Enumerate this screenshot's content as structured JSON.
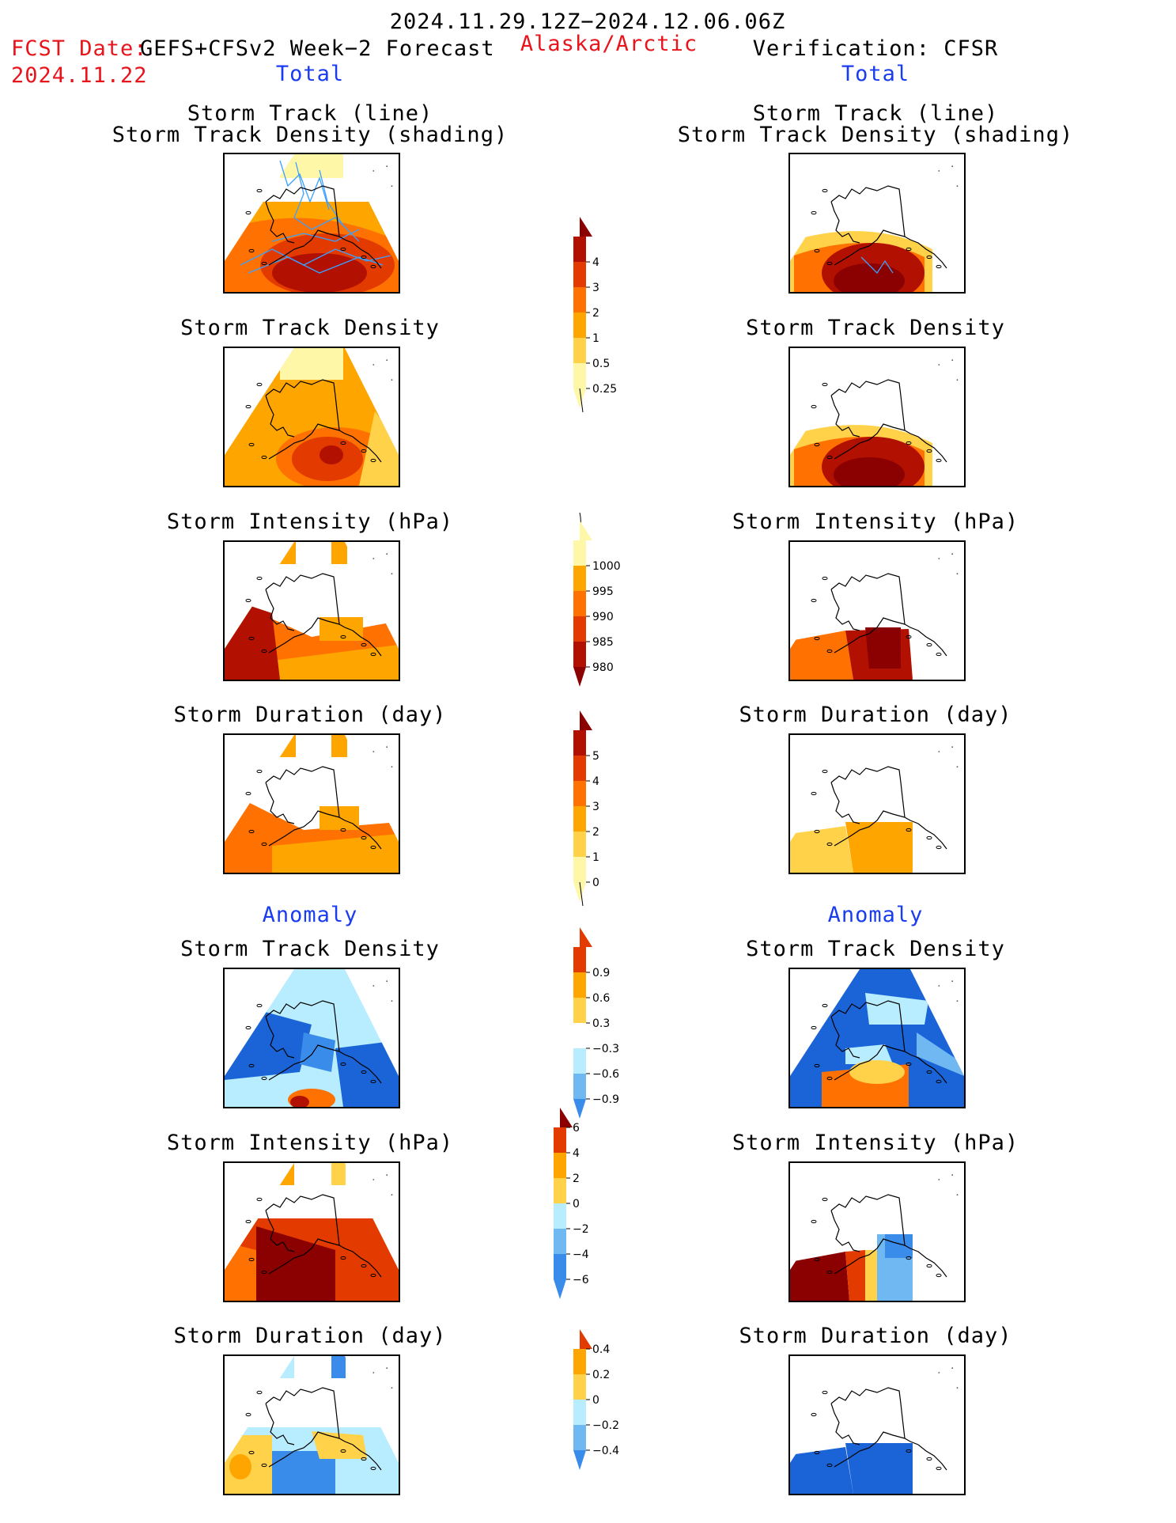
{
  "header": {
    "period": "2024.11.29.12Z−2024.12.06.06Z",
    "fcst_label": "FCST Date:",
    "fcst_model": "GEFS+CFSv2 Week−2 Forecast",
    "fcst_date": "2024.11.22",
    "region": "Alaska/Arctic",
    "verification": "Verification: CFSR"
  },
  "columns": {
    "left_total": "Total",
    "right_total": "Total",
    "left_anomaly": "Anomaly",
    "right_anomaly": "Anomaly"
  },
  "panel_titles": {
    "track_line": "Storm Track (line)",
    "track_shading": "Storm Track Density (shading)",
    "density": "Storm Track Density",
    "intensity": "Storm Intensity (hPa)",
    "duration": "Storm Duration (day)"
  },
  "colors": {
    "c1": "#fff7a8",
    "c2": "#ffd24a",
    "c3": "#ffa500",
    "c4": "#ff7100",
    "c5": "#e33a00",
    "c6": "#b21000",
    "c7": "#8b0000",
    "b1": "#b8ecff",
    "b2": "#6fb8f2",
    "b3": "#3a8cea",
    "b4": "#1a64d8",
    "track": "#3aa0ff",
    "title_red": "#e8141c",
    "title_blue": "#1a3cf0"
  },
  "chart_data": [
    {
      "type": "heatmap",
      "name": "colorbar_track_density_total",
      "levels": [
        0.25,
        0.5,
        1,
        2,
        3,
        4
      ],
      "tick_labels": [
        "4",
        "3",
        "2",
        "1",
        "0.5",
        "0.25"
      ]
    },
    {
      "type": "heatmap",
      "name": "colorbar_intensity_total",
      "levels": [
        1000,
        995,
        990,
        985,
        980
      ],
      "tick_labels": [
        "1000",
        "995",
        "990",
        "985",
        "980"
      ]
    },
    {
      "type": "heatmap",
      "name": "colorbar_duration_total",
      "levels": [
        0,
        1,
        2,
        3,
        4,
        5
      ],
      "tick_labels": [
        "5",
        "4",
        "3",
        "2",
        "1",
        "0"
      ]
    },
    {
      "type": "heatmap",
      "name": "colorbar_density_anomaly",
      "levels": [
        0.9,
        0.6,
        0.3,
        -0.3,
        -0.6,
        -0.9
      ],
      "tick_labels": [
        "0.9",
        "0.6",
        "0.3",
        "−0.3",
        "−0.6",
        "−0.9"
      ]
    },
    {
      "type": "heatmap",
      "name": "colorbar_intensity_anomaly",
      "levels": [
        6,
        4,
        2,
        0,
        -2,
        -4,
        -6
      ],
      "tick_labels": [
        "6",
        "4",
        "2",
        "0",
        "−2",
        "−4",
        "−6"
      ]
    },
    {
      "type": "heatmap",
      "name": "colorbar_duration_anomaly",
      "levels": [
        0.4,
        0.2,
        0,
        -0.2,
        -0.4
      ],
      "tick_labels": [
        "0.4",
        "0.2",
        "0",
        "−0.2",
        "−0.4"
      ]
    }
  ]
}
